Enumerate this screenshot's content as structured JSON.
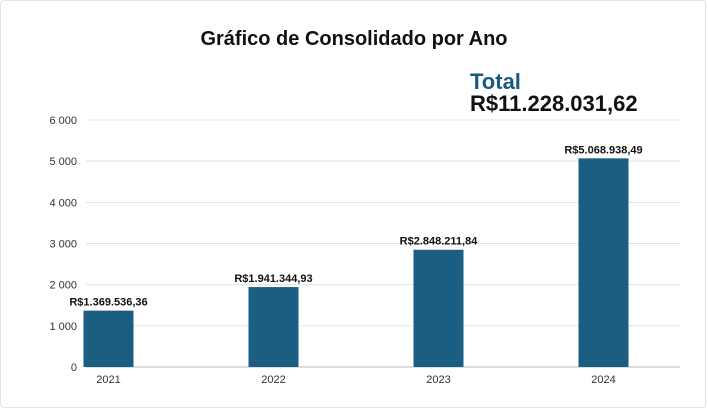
{
  "title": "Gráfico de Consolidado por Ano",
  "total": {
    "label": "Total",
    "value": "R$11.228.031,62"
  },
  "colors": {
    "bar": "#1b5e82",
    "grid": "#e3e3e3",
    "axis_text": "#333333",
    "label_text": "#111111"
  },
  "chart_data": {
    "type": "bar",
    "title": "Gráfico de Consolidado por Ano",
    "xlabel": "",
    "ylabel": "",
    "categories": [
      "2021",
      "2022",
      "2023",
      "2024"
    ],
    "values": [
      1369.54,
      1941.34,
      2848.21,
      5068.94
    ],
    "data_labels": [
      "R$1.369.536,36",
      "R$1.941.344,93",
      "R$2.848.211,84",
      "R$5.068.938,49"
    ],
    "ylim": [
      0,
      6000
    ],
    "yticks": [
      0,
      1000,
      2000,
      3000,
      4000,
      5000,
      6000
    ],
    "ytick_labels": [
      "0",
      "1 000",
      "2 000",
      "3 000",
      "4 000",
      "5 000",
      "6 000"
    ],
    "grid": true,
    "legend": "none"
  }
}
